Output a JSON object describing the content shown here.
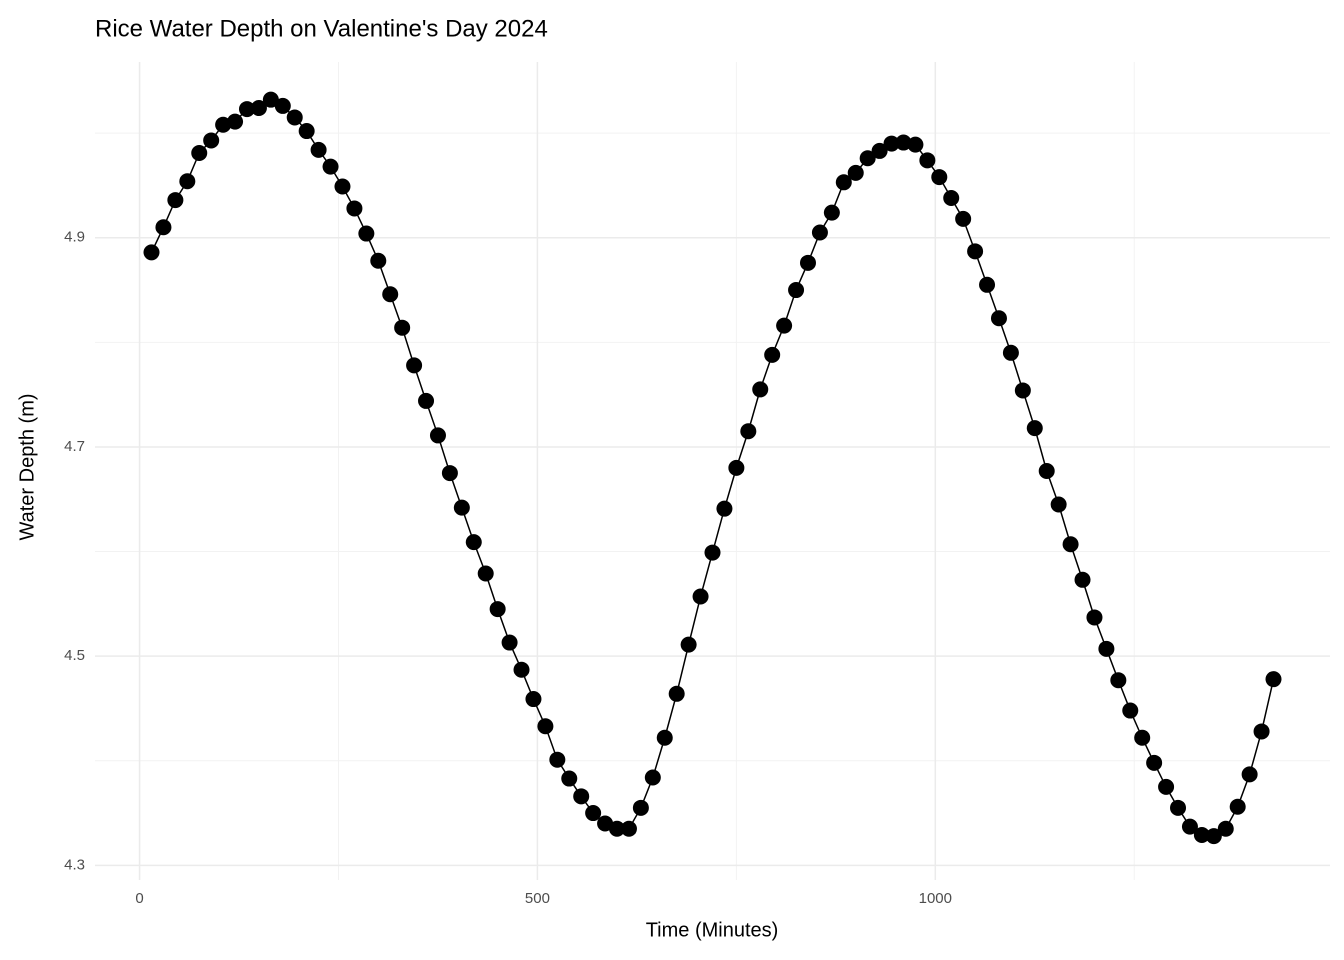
{
  "chart_data": {
    "type": "line",
    "title": "Rice Water Depth on Valentine's Day 2024",
    "x_label": "Time (Minutes)",
    "y_label": "Water Depth (m)",
    "x": [
      15,
      30,
      45,
      60,
      75,
      90,
      105,
      120,
      135,
      150,
      165,
      180,
      195,
      210,
      225,
      240,
      255,
      270,
      285,
      300,
      315,
      330,
      345,
      360,
      375,
      390,
      405,
      420,
      435,
      450,
      465,
      480,
      495,
      510,
      525,
      540,
      555,
      570,
      585,
      600,
      615,
      630,
      645,
      660,
      675,
      690,
      705,
      720,
      735,
      750,
      765,
      780,
      795,
      810,
      825,
      840,
      855,
      870,
      885,
      900,
      915,
      930,
      945,
      960,
      975,
      990,
      1005,
      1020,
      1035,
      1050,
      1065,
      1080,
      1095,
      1110,
      1125,
      1140,
      1155,
      1170,
      1185,
      1200,
      1215,
      1230,
      1245,
      1260,
      1275,
      1290,
      1305,
      1320,
      1335,
      1350,
      1365,
      1380,
      1395,
      1410,
      1425
    ],
    "series": [
      {
        "color": "#000000",
        "values": [
          4.886,
          4.91,
          4.936,
          4.954,
          4.981,
          4.993,
          5.008,
          5.011,
          5.023,
          5.024,
          5.032,
          5.026,
          5.015,
          5.002,
          4.984,
          4.968,
          4.949,
          4.928,
          4.904,
          4.878,
          4.846,
          4.814,
          4.778,
          4.744,
          4.711,
          4.675,
          4.642,
          4.609,
          4.579,
          4.545,
          4.513,
          4.487,
          4.459,
          4.433,
          4.401,
          4.383,
          4.366,
          4.35,
          4.34,
          4.335,
          4.335,
          4.355,
          4.384,
          4.422,
          4.464,
          4.511,
          4.557,
          4.599,
          4.641,
          4.68,
          4.715,
          4.755,
          4.788,
          4.816,
          4.85,
          4.876,
          4.905,
          4.924,
          4.953,
          4.962,
          4.976,
          4.983,
          4.99,
          4.991,
          4.989,
          4.974,
          4.958,
          4.938,
          4.918,
          4.887,
          4.855,
          4.823,
          4.79,
          4.754,
          4.718,
          4.677,
          4.645,
          4.607,
          4.573,
          4.537,
          4.507,
          4.477,
          4.448,
          4.422,
          4.398,
          4.375,
          4.355,
          4.337,
          4.329,
          4.328,
          4.335,
          4.356,
          4.387,
          4.428,
          4.478
        ]
      }
    ],
    "xlim": [
      -56,
      1496
    ],
    "ylim": [
      4.286,
      5.068
    ],
    "xticks": [
      0,
      500,
      1000
    ],
    "yticks": [
      4.3,
      4.5,
      4.7,
      4.9
    ],
    "x_minor_ticks": [
      250,
      750,
      1250
    ],
    "y_minor_ticks": [
      4.4,
      4.6,
      4.8,
      5.0
    ],
    "grid": true
  }
}
